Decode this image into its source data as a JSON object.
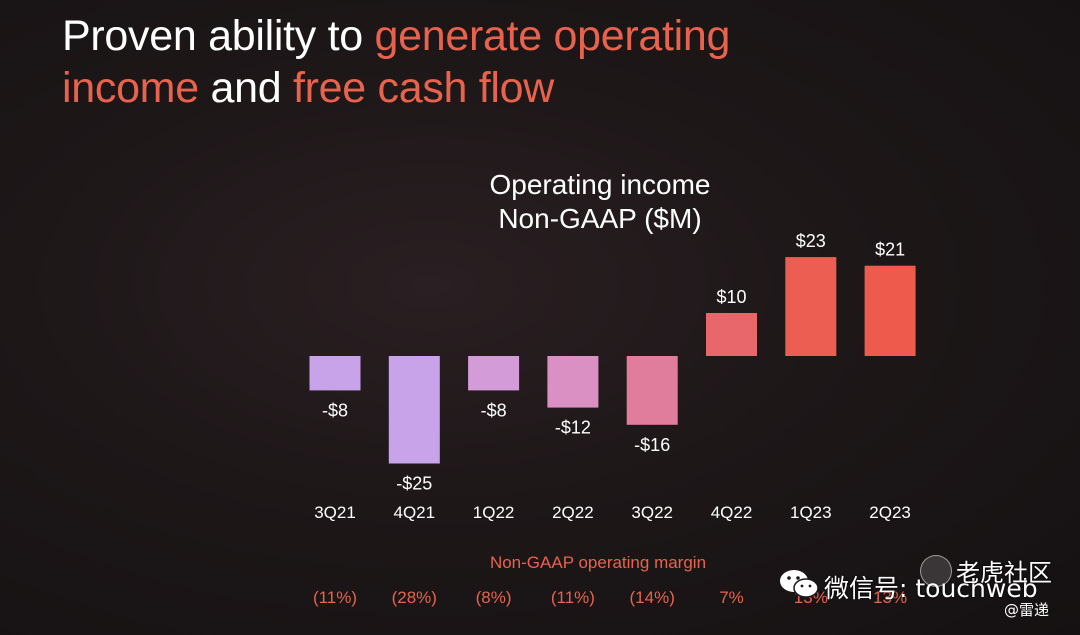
{
  "headline": {
    "part1": "Proven ability to ",
    "part2": "generate operating",
    "part3": "income",
    "part4": " and ",
    "part5": "free cash flow"
  },
  "chart_data": {
    "type": "bar",
    "title_line1": "Operating income",
    "title_line2": "Non-GAAP ($M)",
    "categories": [
      "3Q21",
      "4Q21",
      "1Q22",
      "2Q22",
      "3Q22",
      "4Q22",
      "1Q23",
      "2Q23"
    ],
    "values": [
      -8,
      -25,
      -8,
      -12,
      -16,
      10,
      23,
      21
    ],
    "value_labels": [
      "-$8",
      "-$25",
      "-$8",
      "-$12",
      "-$16",
      "$10",
      "$23",
      "$21"
    ],
    "bar_colors": [
      "#c9a3ea",
      "#c9a3ea",
      "#d39bd8",
      "#da90c2",
      "#e07d9c",
      "#e8676a",
      "#ec5d52",
      "#ee5a4c"
    ],
    "ylim": [
      -25,
      23
    ],
    "grid": false,
    "legend": "none"
  },
  "margin_section": {
    "title": "Non-GAAP operating margin",
    "values": [
      "(11%)",
      "(28%)",
      "(8%)",
      "(11%)",
      "(14%)",
      "7%",
      "13%",
      "13%"
    ],
    "color": "#e8634d"
  },
  "colors": {
    "accent": "#e8634d",
    "text": "#ffffff",
    "background": "#1d1718"
  },
  "watermark": {
    "text": "微信号: touchweb",
    "community": "老虎社区",
    "handle": "@雷递"
  }
}
